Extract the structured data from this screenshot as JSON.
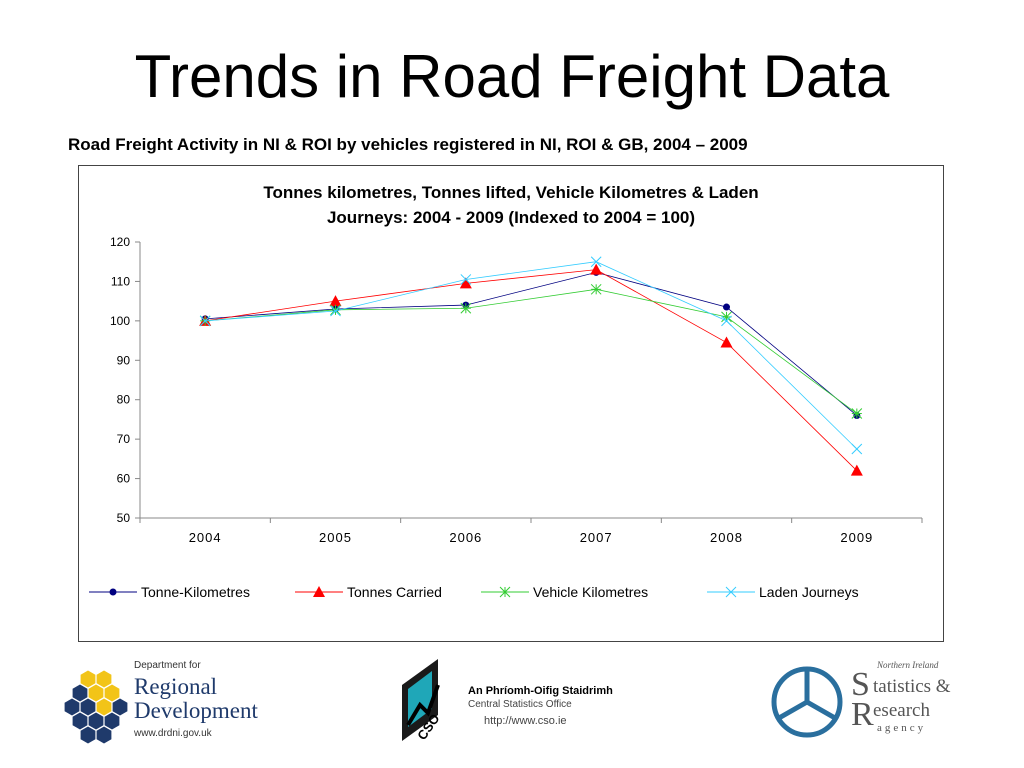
{
  "slide": {
    "title": "Trends in Road Freight Data",
    "subtitle": "Road Freight Activity in NI & ROI by vehicles registered in NI, ROI & GB, 2004 – 2009"
  },
  "chart_data": {
    "type": "line",
    "title_line1": "Tonnes kilometres, Tonnes lifted, Vehicle Kilometres & Laden",
    "title_line2": "Journeys: 2004 - 2009 (Indexed to 2004 = 100)",
    "categories": [
      "2004",
      "2005",
      "2006",
      "2007",
      "2008",
      "2009"
    ],
    "ylim": [
      50,
      120
    ],
    "yticks": [
      50,
      60,
      70,
      80,
      90,
      100,
      110,
      120
    ],
    "grid": false,
    "legend_position": "bottom",
    "series": [
      {
        "name": "Tonne-Kilometres",
        "color": "#000080",
        "marker": "circle",
        "values": [
          100.5,
          103,
          104,
          112.3,
          103.5,
          76
        ]
      },
      {
        "name": "Tonnes Carried",
        "color": "#ff0000",
        "marker": "triangle",
        "values": [
          100,
          105,
          109.5,
          113,
          94.5,
          62
        ]
      },
      {
        "name": "Vehicle Kilometres",
        "color": "#33cc33",
        "marker": "star",
        "values": [
          100,
          102.8,
          103.2,
          108,
          101,
          76.5
        ]
      },
      {
        "name": "Laden Journeys",
        "color": "#33ccff",
        "marker": "x",
        "values": [
          100,
          102.5,
          110.5,
          115,
          100,
          67.5
        ]
      }
    ]
  },
  "logos": {
    "drd": {
      "top": "Department for",
      "line1": "Regional",
      "line2": "Development",
      "url": "www.drdni.gov.uk"
    },
    "cso": {
      "mark": "CSO",
      "irish": "An Phríomh-Oifig Staidrimh",
      "english": "Central Statistics Office",
      "url": "http://www.cso.ie"
    },
    "nisra": {
      "top": "Northern Ireland",
      "line1": "tatistics &",
      "line2": "esearch",
      "line3": "agency",
      "s": "S",
      "r": "R"
    }
  }
}
